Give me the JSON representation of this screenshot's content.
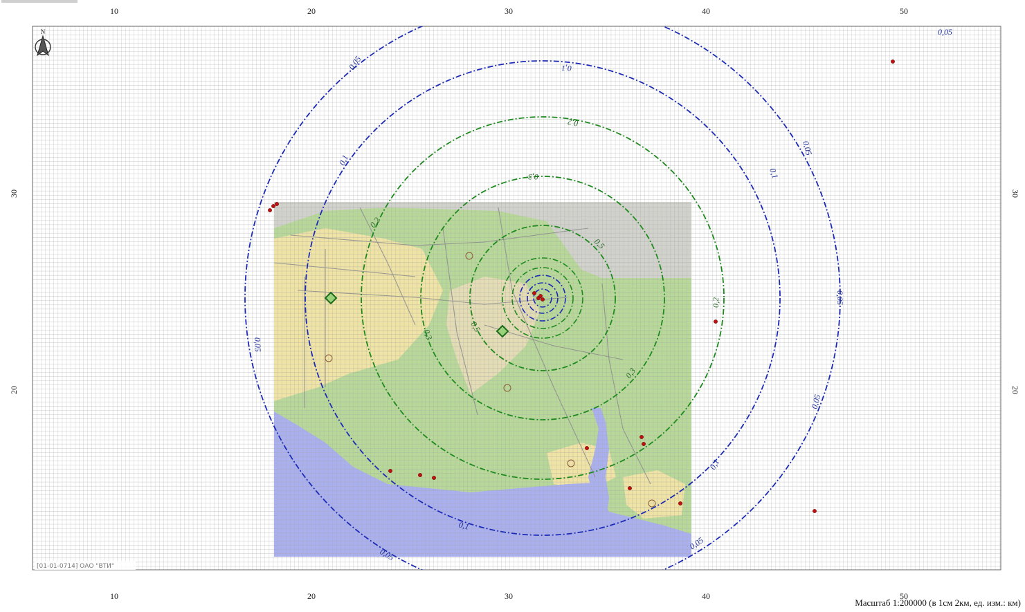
{
  "map": {
    "scale_text": "Масштаб 1:200000 (в 1см 2км, ед. изм.: км)",
    "credit": "[01-01-0714] ОАО \"ВТИ\"",
    "north_label": "N",
    "north_icon": "north-arrow-icon",
    "x_ticks": [
      "10",
      "20",
      "30",
      "40",
      "50"
    ],
    "y_ticks": [
      "30",
      "20"
    ],
    "colors": {
      "grid": "#9a9a9a",
      "outer_isolines": "#1c2bb5",
      "inner_isolines": "#1e8a1e",
      "water": "#aab0ee",
      "land": "#b8d89a",
      "urban": "#efe3a5",
      "industrial": "#cfcfcf",
      "source_marker": "#c01010",
      "receptor_marker": "#2e8b2e"
    },
    "isolines": [
      {
        "label": "0,05",
        "color": "blue"
      },
      {
        "label": "0,1",
        "color": "blue"
      },
      {
        "label": "0,2",
        "color": "green"
      },
      {
        "label": "0,3",
        "color": "green"
      },
      {
        "label": "0,5",
        "color": "green"
      }
    ],
    "iso_labels": [
      {
        "text": "0,05",
        "color": "blue"
      },
      {
        "text": "0,05",
        "color": "blue"
      },
      {
        "text": "0,05",
        "color": "blue"
      },
      {
        "text": "0,05",
        "color": "blue"
      },
      {
        "text": "0,05",
        "color": "blue"
      },
      {
        "text": "0,05",
        "color": "blue"
      },
      {
        "text": "0,05",
        "color": "blue"
      },
      {
        "text": "0,05",
        "color": "blue"
      },
      {
        "text": "0,1",
        "color": "blue"
      },
      {
        "text": "0,1",
        "color": "blue"
      },
      {
        "text": "0,1",
        "color": "blue"
      },
      {
        "text": "0,1",
        "color": "blue"
      },
      {
        "text": "0,1",
        "color": "blue"
      },
      {
        "text": "0,2",
        "color": "green"
      },
      {
        "text": "0,2",
        "color": "green"
      },
      {
        "text": "0,2",
        "color": "green"
      },
      {
        "text": "0,3",
        "color": "green"
      },
      {
        "text": "0,3",
        "color": "green"
      },
      {
        "text": "0,3",
        "color": "green"
      },
      {
        "text": "0,5",
        "color": "green"
      },
      {
        "text": "0,5",
        "color": "green"
      }
    ]
  }
}
